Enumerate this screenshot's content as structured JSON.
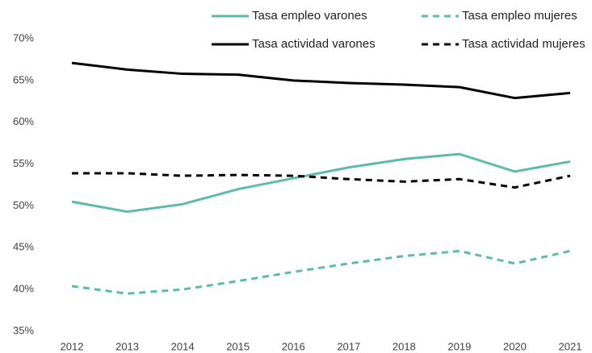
{
  "chart_data": {
    "type": "line",
    "categories": [
      "2012",
      "2013",
      "2014",
      "2015",
      "2016",
      "2017",
      "2018",
      "2019",
      "2020",
      "2021"
    ],
    "series": [
      {
        "name": "Tasa empleo varones",
        "color": "#5bbcad",
        "dashed": false,
        "values": [
          50.5,
          49.3,
          50.2,
          52.0,
          53.3,
          54.6,
          55.6,
          56.2,
          54.1,
          55.3
        ]
      },
      {
        "name": "Tasa empleo mujeres",
        "color": "#5bbcad",
        "dashed": true,
        "values": [
          40.4,
          39.5,
          40.0,
          41.0,
          42.1,
          43.1,
          44.0,
          44.6,
          43.1,
          44.6
        ]
      },
      {
        "name": "Tasa actividad varones",
        "color": "#000000",
        "dashed": false,
        "values": [
          67.1,
          66.3,
          65.8,
          65.7,
          65.0,
          64.7,
          64.5,
          64.2,
          62.9,
          63.5
        ]
      },
      {
        "name": "Tasa actividad mujeres",
        "color": "#000000",
        "dashed": true,
        "values": [
          53.9,
          53.9,
          53.6,
          53.7,
          53.6,
          53.2,
          52.9,
          53.2,
          52.2,
          53.6
        ]
      }
    ],
    "ylim": [
      35,
      70
    ],
    "yticks": [
      {
        "value": 35,
        "label": "35%"
      },
      {
        "value": 40,
        "label": "40%"
      },
      {
        "value": 45,
        "label": "45%"
      },
      {
        "value": 50,
        "label": "50%"
      },
      {
        "value": 55,
        "label": "55%"
      },
      {
        "value": 60,
        "label": "60%"
      },
      {
        "value": 65,
        "label": "65%"
      },
      {
        "value": 70,
        "label": "70%"
      }
    ],
    "grid": false
  }
}
